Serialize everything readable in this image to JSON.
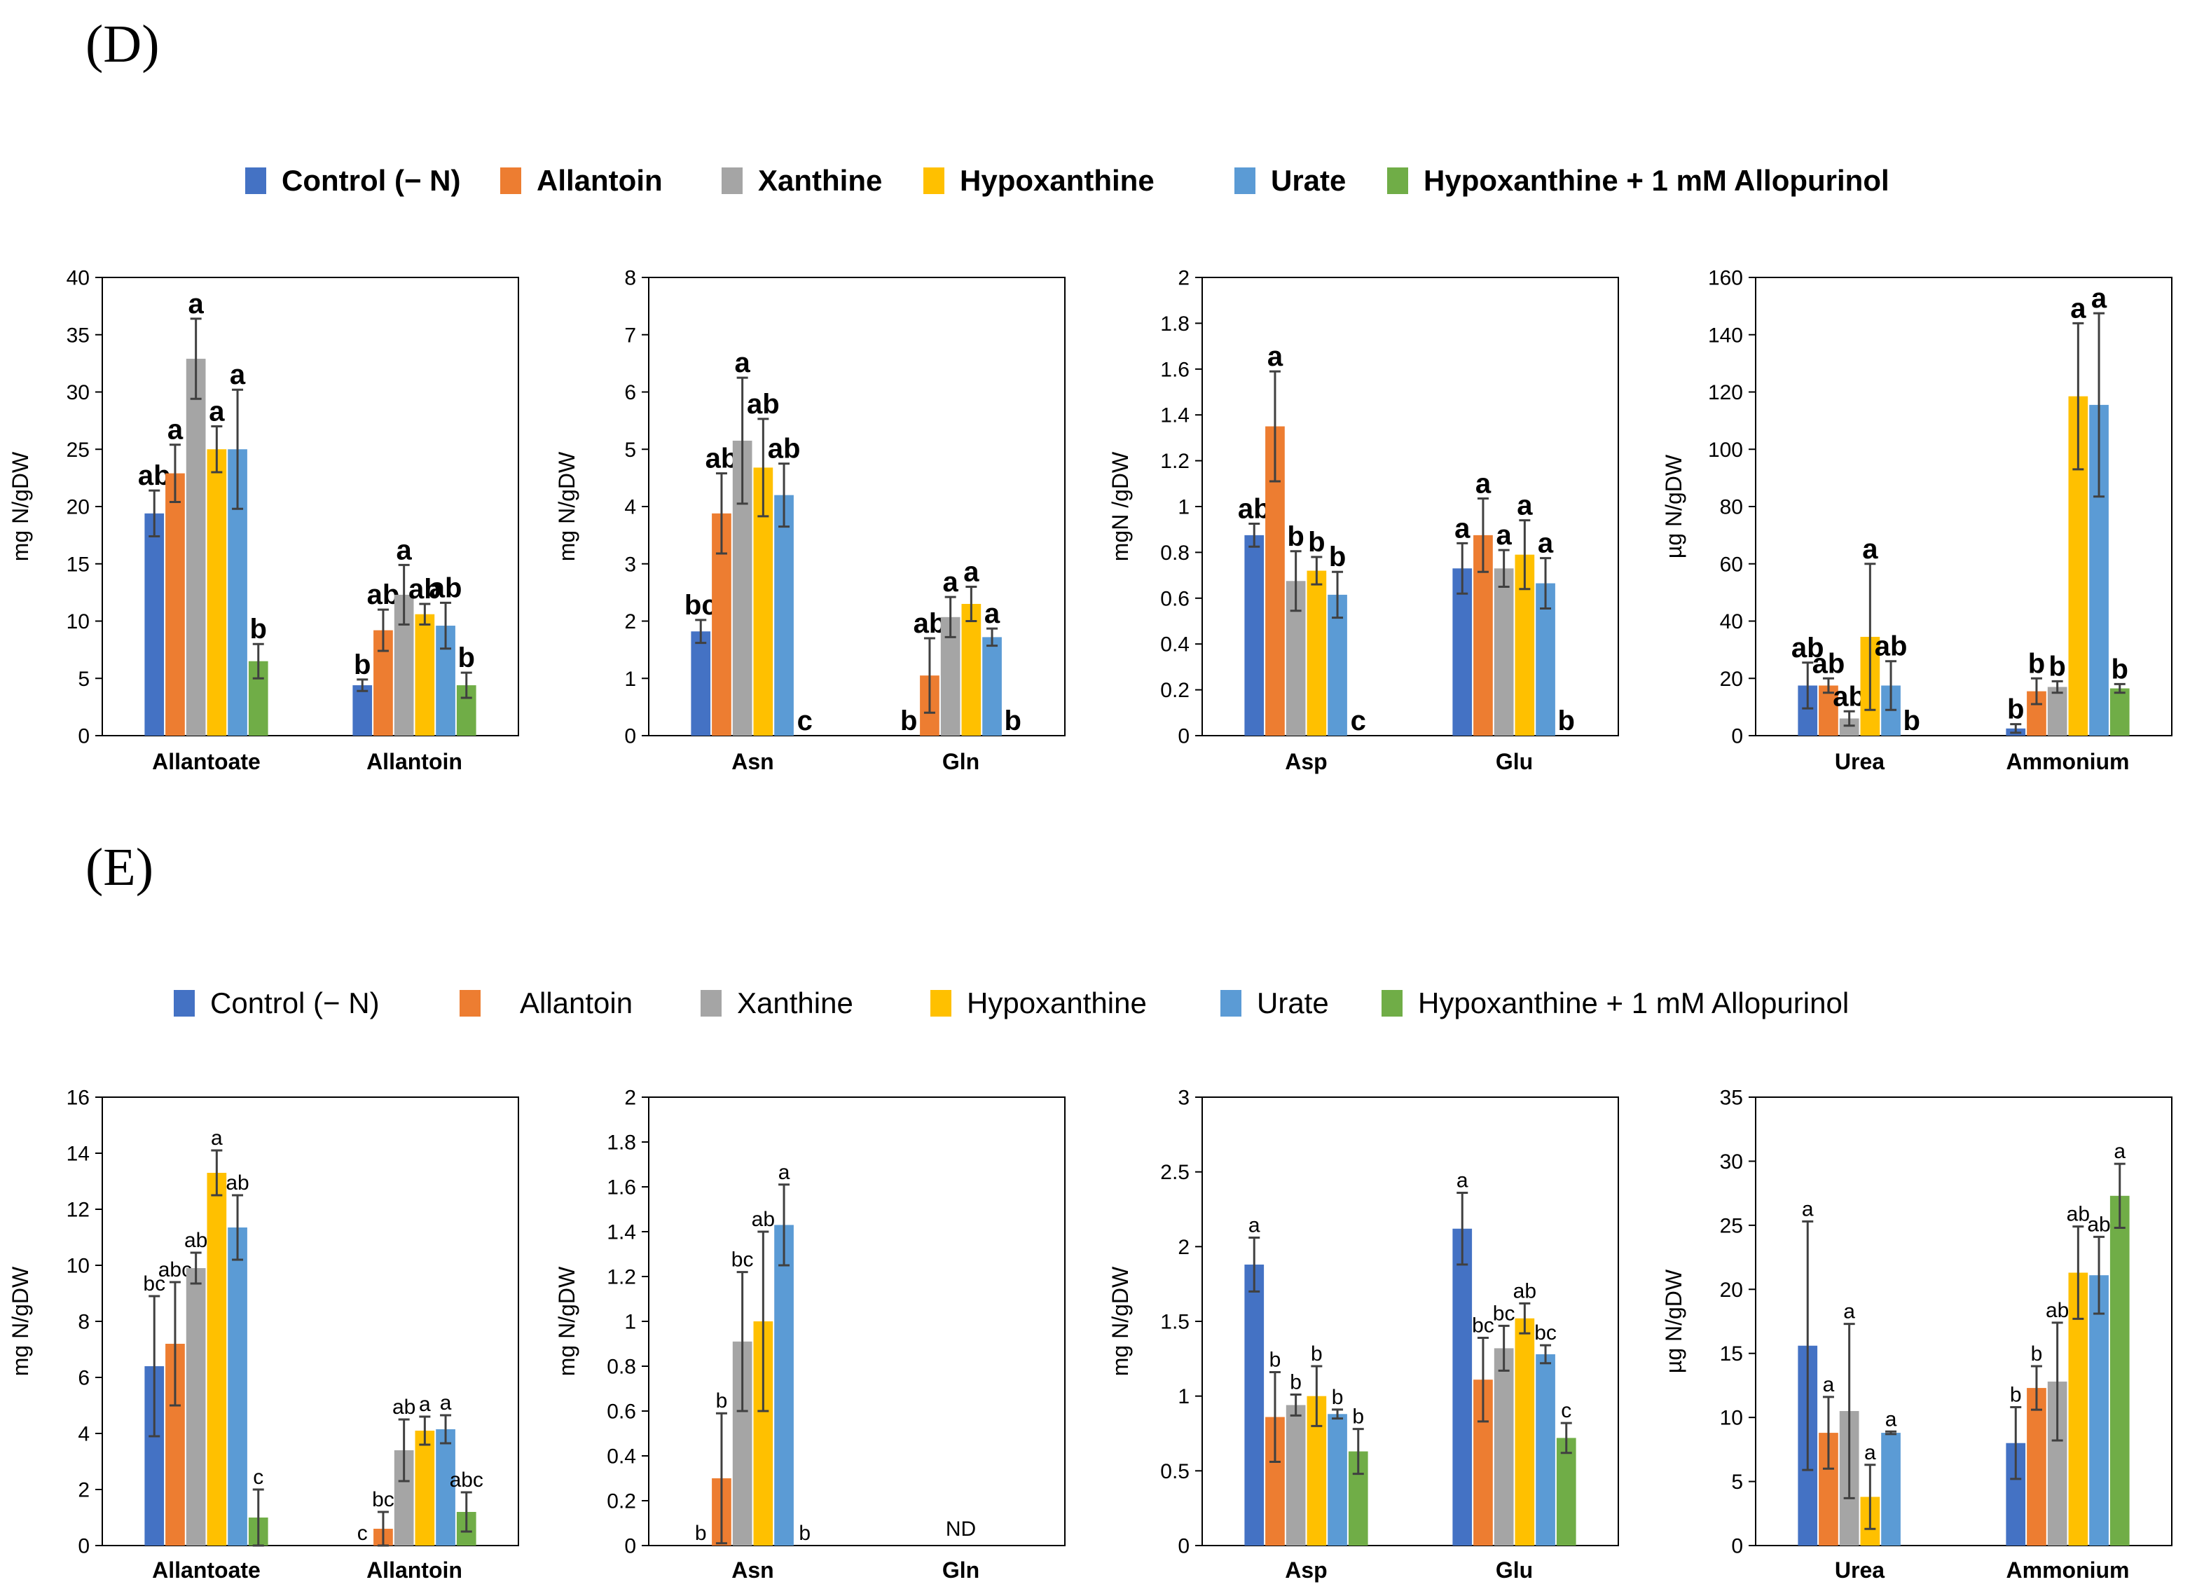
{
  "colors": {
    "Control (- N)": "#4472C4",
    "Allantoin": "#ED7D31",
    "Xanthine": "#A5A5A5",
    "Hypoxanthine": "#FFC000",
    "Urate": "#5B9BD5",
    "Hypoxanthine + 1 mM Allopurinol": "#70AD47"
  },
  "panels": [
    {
      "id": "D",
      "label": "(D)",
      "legend": {
        "items": [
          "Control  (− N)",
          "Allantoin",
          "Xanthine",
          "Hypoxanthine",
          "Urate",
          "Hypoxanthine + 1 mM Allopurinol"
        ]
      }
    },
    {
      "id": "E",
      "label": "(E)",
      "legend": {
        "items": [
          "Control  (− N)",
          "Allantoin",
          "Xanthine",
          "Hypoxanthine",
          "Urate",
          "Hypoxanthine + 1 mM Allopurinol"
        ]
      }
    }
  ],
  "chart_data": [
    {
      "panel": "D",
      "type": "bar",
      "ylabel": "mg N/gDW",
      "ylim": [
        0,
        40
      ],
      "yticks": [
        0,
        5,
        10,
        15,
        20,
        25,
        30,
        35,
        40
      ],
      "categories": [
        "Allantoate",
        "Allantoin"
      ],
      "letter_style": "bold",
      "series": [
        {
          "name": "Control (- N)",
          "values": [
            19.4,
            4.4
          ],
          "errors": [
            2.0,
            0.5
          ],
          "letters": [
            "ab",
            "b"
          ]
        },
        {
          "name": "Allantoin",
          "values": [
            22.9,
            9.2
          ],
          "errors": [
            2.5,
            1.8
          ],
          "letters": [
            "a",
            "ab"
          ]
        },
        {
          "name": "Xanthine",
          "values": [
            32.9,
            12.3
          ],
          "errors": [
            3.5,
            2.6
          ],
          "letters": [
            "a",
            "a"
          ]
        },
        {
          "name": "Hypoxanthine",
          "values": [
            25.0,
            10.6
          ],
          "errors": [
            2.0,
            0.9
          ],
          "letters": [
            "a",
            "ab"
          ]
        },
        {
          "name": "Urate",
          "values": [
            25.0,
            9.6
          ],
          "errors": [
            5.2,
            2.0
          ],
          "letters": [
            "a",
            "ab"
          ]
        },
        {
          "name": "Hypoxanthine + 1 mM Allopurinol",
          "values": [
            6.5,
            4.4
          ],
          "errors": [
            1.5,
            1.1
          ],
          "letters": [
            "b",
            "b"
          ]
        }
      ]
    },
    {
      "panel": "D",
      "type": "bar",
      "ylabel": "mg N/gDW",
      "ylim": [
        0,
        8
      ],
      "yticks": [
        0,
        1,
        2,
        3,
        4,
        5,
        6,
        7,
        8
      ],
      "categories": [
        "Asn",
        "Gln"
      ],
      "letter_style": "bold",
      "series": [
        {
          "name": "Control (- N)",
          "values": [
            1.82,
            0
          ],
          "errors": [
            0.2,
            0
          ],
          "letters": [
            "bc",
            "b"
          ]
        },
        {
          "name": "Allantoin",
          "values": [
            3.88,
            1.05
          ],
          "errors": [
            0.7,
            0.65
          ],
          "letters": [
            "ab",
            "ab"
          ]
        },
        {
          "name": "Xanthine",
          "values": [
            5.15,
            2.07
          ],
          "errors": [
            1.1,
            0.35
          ],
          "letters": [
            "a",
            "a"
          ]
        },
        {
          "name": "Hypoxanthine",
          "values": [
            4.68,
            2.3
          ],
          "errors": [
            0.85,
            0.3
          ],
          "letters": [
            "ab",
            "a"
          ]
        },
        {
          "name": "Urate",
          "values": [
            4.2,
            1.72
          ],
          "errors": [
            0.55,
            0.15
          ],
          "letters": [
            "ab",
            "a"
          ]
        },
        {
          "name": "Hypoxanthine + 1 mM Allopurinol",
          "values": [
            0,
            0
          ],
          "errors": [
            0,
            0
          ],
          "letters": [
            "c",
            "b"
          ]
        }
      ]
    },
    {
      "panel": "D",
      "type": "bar",
      "ylabel": "mgN /gDW",
      "ylim": [
        0,
        2
      ],
      "yticks": [
        0,
        0.2,
        0.4,
        0.6,
        0.8,
        1,
        1.2,
        1.4,
        1.6,
        1.8,
        2
      ],
      "categories": [
        "Asp",
        "Glu"
      ],
      "letter_style": "bold",
      "series": [
        {
          "name": "Control (- N)",
          "values": [
            0.875,
            0.73
          ],
          "errors": [
            0.05,
            0.11
          ],
          "letters": [
            "ab",
            "a"
          ]
        },
        {
          "name": "Allantoin",
          "values": [
            1.35,
            0.875
          ],
          "errors": [
            0.24,
            0.16
          ],
          "letters": [
            "a",
            "a"
          ]
        },
        {
          "name": "Xanthine",
          "values": [
            0.675,
            0.73
          ],
          "errors": [
            0.13,
            0.08
          ],
          "letters": [
            "b",
            "a"
          ]
        },
        {
          "name": "Hypoxanthine",
          "values": [
            0.72,
            0.79
          ],
          "errors": [
            0.06,
            0.15
          ],
          "letters": [
            "b",
            "a"
          ]
        },
        {
          "name": "Urate",
          "values": [
            0.615,
            0.665
          ],
          "errors": [
            0.1,
            0.11
          ],
          "letters": [
            "b",
            "a"
          ]
        },
        {
          "name": "Hypoxanthine + 1 mM Allopurinol",
          "values": [
            0,
            0
          ],
          "errors": [
            0,
            0
          ],
          "letters": [
            "c",
            "b"
          ]
        }
      ]
    },
    {
      "panel": "D",
      "type": "bar",
      "ylabel": "µg N/gDW",
      "ylim": [
        0,
        160
      ],
      "yticks": [
        0,
        20,
        40,
        60,
        80,
        100,
        120,
        140,
        160
      ],
      "categories": [
        "Urea",
        "Ammonium"
      ],
      "letter_style": "bold",
      "series": [
        {
          "name": "Control (- N)",
          "values": [
            17.5,
            2.5
          ],
          "errors": [
            8,
            1.5
          ],
          "letters": [
            "ab",
            "b"
          ]
        },
        {
          "name": "Allantoin",
          "values": [
            17.5,
            15.5
          ],
          "errors": [
            2.5,
            4.5
          ],
          "letters": [
            "ab",
            "b"
          ]
        },
        {
          "name": "Xanthine",
          "values": [
            6,
            17
          ],
          "errors": [
            2.5,
            2
          ],
          "letters": [
            "ab",
            "b"
          ]
        },
        {
          "name": "Hypoxanthine",
          "values": [
            34.5,
            118.5
          ],
          "errors": [
            25.5,
            25.5
          ],
          "letters": [
            "a",
            "a"
          ]
        },
        {
          "name": "Urate",
          "values": [
            17.5,
            115.5
          ],
          "errors": [
            8.5,
            32
          ],
          "letters": [
            "ab",
            "a"
          ]
        },
        {
          "name": "Hypoxanthine + 1 mM Allopurinol",
          "values": [
            0,
            16.5
          ],
          "errors": [
            0,
            1.5
          ],
          "letters": [
            "b",
            "b"
          ]
        }
      ]
    },
    {
      "panel": "E",
      "type": "bar",
      "ylabel": "mg N/gDW",
      "ylim": [
        0,
        16
      ],
      "yticks": [
        0,
        2,
        4,
        6,
        8,
        10,
        12,
        14,
        16
      ],
      "categories": [
        "Allantoate",
        "Allantoin"
      ],
      "letter_style": "normal",
      "series": [
        {
          "name": "Control (- N)",
          "values": [
            6.4,
            0
          ],
          "errors": [
            2.5,
            0
          ],
          "letters": [
            "bc",
            "c"
          ]
        },
        {
          "name": "Allantoin",
          "values": [
            7.2,
            0.6
          ],
          "errors": [
            2.2,
            0.6
          ],
          "letters": [
            "abc",
            "bc"
          ]
        },
        {
          "name": "Xanthine",
          "values": [
            9.9,
            3.4
          ],
          "errors": [
            0.55,
            1.1
          ],
          "letters": [
            "ab",
            "ab"
          ]
        },
        {
          "name": "Hypoxanthine",
          "values": [
            13.3,
            4.1
          ],
          "errors": [
            0.8,
            0.5
          ],
          "letters": [
            "a",
            "a"
          ]
        },
        {
          "name": "Urate",
          "values": [
            11.35,
            4.15
          ],
          "errors": [
            1.15,
            0.5
          ],
          "letters": [
            "ab",
            "a"
          ]
        },
        {
          "name": "Hypoxanthine + 1 mM Allopurinol",
          "values": [
            1.0,
            1.2
          ],
          "errors": [
            1.0,
            0.7
          ],
          "letters": [
            "c",
            "abc"
          ]
        }
      ]
    },
    {
      "panel": "E",
      "type": "bar",
      "ylabel": "mg N/gDW",
      "ylim": [
        0,
        2
      ],
      "yticks": [
        0,
        0.2,
        0.4,
        0.6,
        0.8,
        1,
        1.2,
        1.4,
        1.6,
        1.8,
        2
      ],
      "categories": [
        "Asn",
        "Gln"
      ],
      "letter_style": "normal",
      "annotations": [
        {
          "text": "ND",
          "category": "Gln"
        }
      ],
      "series": [
        {
          "name": "Control (- N)",
          "values": [
            0,
            null
          ],
          "errors": [
            0,
            0
          ],
          "letters": [
            "b",
            ""
          ]
        },
        {
          "name": "Allantoin",
          "values": [
            0.3,
            null
          ],
          "errors": [
            0.29,
            0
          ],
          "letters": [
            "b",
            ""
          ]
        },
        {
          "name": "Xanthine",
          "values": [
            0.91,
            null
          ],
          "errors": [
            0.31,
            0
          ],
          "letters": [
            "bc",
            ""
          ]
        },
        {
          "name": "Hypoxanthine",
          "values": [
            1.0,
            null
          ],
          "errors": [
            0.4,
            0
          ],
          "letters": [
            "ab",
            ""
          ]
        },
        {
          "name": "Urate",
          "values": [
            1.43,
            null
          ],
          "errors": [
            0.18,
            0
          ],
          "letters": [
            "a",
            ""
          ]
        },
        {
          "name": "Hypoxanthine + 1 mM Allopurinol",
          "values": [
            0,
            null
          ],
          "errors": [
            0,
            0
          ],
          "letters": [
            "b",
            ""
          ]
        }
      ]
    },
    {
      "panel": "E",
      "type": "bar",
      "ylabel": "mg N/gDW",
      "ylim": [
        0,
        3
      ],
      "yticks": [
        0,
        0.5,
        1,
        1.5,
        2,
        2.5,
        3
      ],
      "categories": [
        "Asp",
        "Glu"
      ],
      "letter_style": "normal",
      "series": [
        {
          "name": "Control (- N)",
          "values": [
            1.88,
            2.12
          ],
          "errors": [
            0.18,
            0.24
          ],
          "letters": [
            "a",
            "a"
          ]
        },
        {
          "name": "Allantoin",
          "values": [
            0.86,
            1.11
          ],
          "errors": [
            0.3,
            0.28
          ],
          "letters": [
            "b",
            "bc"
          ]
        },
        {
          "name": "Xanthine",
          "values": [
            0.94,
            1.32
          ],
          "errors": [
            0.07,
            0.15
          ],
          "letters": [
            "b",
            "bc"
          ]
        },
        {
          "name": "Hypoxanthine",
          "values": [
            1.0,
            1.52
          ],
          "errors": [
            0.2,
            0.1
          ],
          "letters": [
            "b",
            "ab"
          ]
        },
        {
          "name": "Urate",
          "values": [
            0.88,
            1.28
          ],
          "errors": [
            0.03,
            0.06
          ],
          "letters": [
            "b",
            "bc"
          ]
        },
        {
          "name": "Hypoxanthine + 1 mM Allopurinol",
          "values": [
            0.63,
            0.72
          ],
          "errors": [
            0.15,
            0.1
          ],
          "letters": [
            "b",
            "c"
          ]
        }
      ]
    },
    {
      "panel": "E",
      "type": "bar",
      "ylabel": "µg N/gDW",
      "ylim": [
        0,
        35
      ],
      "yticks": [
        0,
        5,
        10,
        15,
        20,
        25,
        30,
        35
      ],
      "categories": [
        "Urea",
        "Ammonium"
      ],
      "letter_style": "normal",
      "series": [
        {
          "name": "Control (- N)",
          "values": [
            15.6,
            8.0
          ],
          "errors": [
            9.7,
            2.8
          ],
          "letters": [
            "a",
            "b"
          ]
        },
        {
          "name": "Allantoin",
          "values": [
            8.8,
            12.3
          ],
          "errors": [
            2.8,
            1.7
          ],
          "letters": [
            "a",
            "b"
          ]
        },
        {
          "name": "Xanthine",
          "values": [
            10.5,
            12.8
          ],
          "errors": [
            6.8,
            4.6
          ],
          "letters": [
            "a",
            "ab"
          ]
        },
        {
          "name": "Hypoxanthine",
          "values": [
            3.8,
            21.3
          ],
          "errors": [
            2.5,
            3.6
          ],
          "letters": [
            "a",
            "ab"
          ]
        },
        {
          "name": "Urate",
          "values": [
            8.8,
            21.1
          ],
          "errors": [
            0.1,
            3.0
          ],
          "letters": [
            "a",
            "ab"
          ]
        },
        {
          "name": "Hypoxanthine + 1 mM Allopurinol",
          "values": [
            null,
            27.3
          ],
          "errors": [
            0,
            2.5
          ],
          "letters": [
            "",
            "a"
          ]
        }
      ]
    }
  ]
}
